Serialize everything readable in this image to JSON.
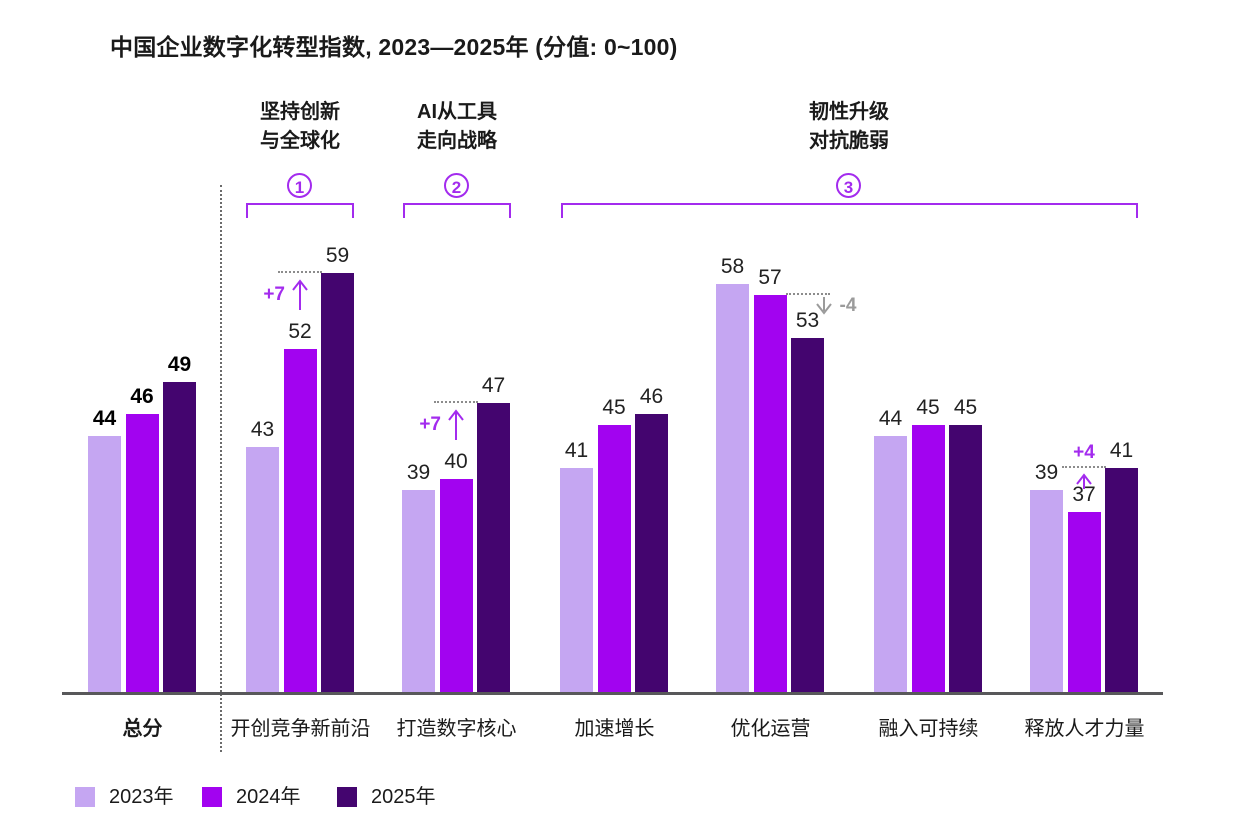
{
  "title": "中国企业数字化转型指数, 2023—2025年 (分值: 0~100)",
  "group_headers": [
    {
      "number": "1",
      "line1": "坚持创新",
      "line2": "与全球化"
    },
    {
      "number": "2",
      "line1": "AI从工具",
      "line2": "走向战略"
    },
    {
      "number": "3",
      "line1": "韧性升级",
      "line2": "对抗脆弱"
    }
  ],
  "chart_data": {
    "type": "bar",
    "title": "中国企业数字化转型指数, 2023—2025年 (分值: 0~100)",
    "score_range": "0~100",
    "categories": [
      "总分",
      "开创竞争新前沿",
      "打造数字核心",
      "加速增长",
      "优化运营",
      "融入可持续",
      "释放人才力量"
    ],
    "series": [
      {
        "name": "2023年",
        "values": [
          44,
          43,
          39,
          41,
          58,
          44,
          39
        ]
      },
      {
        "name": "2024年",
        "values": [
          46,
          52,
          40,
          45,
          57,
          45,
          37
        ]
      },
      {
        "name": "2025年",
        "values": [
          49,
          59,
          47,
          46,
          53,
          45,
          41
        ]
      }
    ],
    "annotations": [
      {
        "category": "开创竞争新前沿",
        "label": "+7",
        "change": 7,
        "direction": "up",
        "label_side": "left"
      },
      {
        "category": "打造数字核心",
        "label": "+7",
        "change": 7,
        "direction": "up",
        "label_side": "left"
      },
      {
        "category": "优化运营",
        "label": "-4",
        "change": -4,
        "direction": "down",
        "label_side": "right"
      },
      {
        "category": "释放人才力量",
        "label": "+4",
        "change": 4,
        "direction": "up",
        "label_side": "above"
      }
    ],
    "group_spans": [
      {
        "header_index": 0,
        "categories": [
          "开创竞争新前沿"
        ]
      },
      {
        "header_index": 1,
        "categories": [
          "打造数字核心"
        ]
      },
      {
        "header_index": 2,
        "categories": [
          "加速增长",
          "优化运营",
          "融入可持续",
          "释放人才力量"
        ]
      }
    ],
    "legend_position": "bottom"
  },
  "legend": [
    {
      "label": "2023年",
      "color": "#C5A6F2"
    },
    {
      "label": "2024年",
      "color": "#A203F0"
    },
    {
      "label": "2025年",
      "color": "#44056F"
    }
  ],
  "colors": {
    "series_2023": "#C5A6F2",
    "series_2024": "#A203F0",
    "series_2025": "#44056F",
    "accent_purple": "#A32BEE",
    "annotation_gray": "#9b9b9b",
    "guide_dotted": "#8c8c8c",
    "axis": "#58585a",
    "text": "#1a1a1a"
  }
}
